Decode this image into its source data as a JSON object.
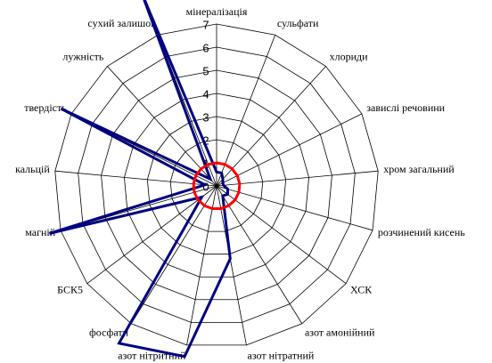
{
  "chart_data": {
    "type": "radar",
    "categories": [
      "мінералізація",
      "сульфати",
      "хлориди",
      "завислі речовини",
      "хром загальний",
      "розчинений кисень",
      "ХСК",
      "азот амонійний",
      "азот нітратний",
      "азот нітритний",
      "фосфати",
      "БСК5",
      "магній",
      "кальцій",
      "твердість",
      "лужність",
      "сухий залишок"
    ],
    "series": [
      {
        "color": "#000080",
        "values": [
          0.6,
          0.6,
          0.4,
          0.3,
          0.3,
          0.5,
          0.6,
          0.5,
          3.2,
          7.5,
          8,
          0.8,
          7.5,
          0.5,
          7.5,
          0.4,
          9
        ]
      },
      {
        "color": "#ff0000",
        "values": [
          1,
          1,
          1,
          1,
          1,
          1,
          1,
          1,
          1,
          1,
          1,
          1,
          1,
          1,
          1,
          1,
          1
        ]
      }
    ],
    "ylim": [
      0,
      7
    ],
    "yticks": [
      0,
      1,
      2,
      3,
      4,
      5,
      6,
      7
    ],
    "grid": true
  }
}
